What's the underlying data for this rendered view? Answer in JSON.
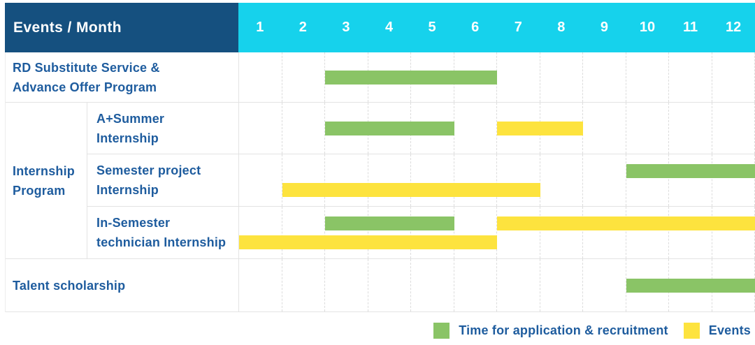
{
  "title": {
    "events_month_label": "Events / Month"
  },
  "header": {
    "months": [
      "1",
      "2",
      "3",
      "4",
      "5",
      "6",
      "7",
      "8",
      "9",
      "10",
      "11",
      "12"
    ]
  },
  "colors": {
    "header_bg": "#15507f",
    "month_header_bg": "#16d2ec",
    "application_bar": "#8ac466",
    "event_bar": "#fde33e",
    "label_text": "#1e5c9e"
  },
  "group": {
    "label_line1": "Internship",
    "label_line2": "Program"
  },
  "rows": [
    {
      "label_line1": "RD Substitute Service &",
      "label_line2": "Advance Offer Program",
      "bars": [
        {
          "kind": "application",
          "start": 3,
          "end": 6,
          "track": "center"
        }
      ]
    },
    {
      "label_line1": "A+Summer",
      "label_line2": "Internship",
      "bars": [
        {
          "kind": "application",
          "start": 3,
          "end": 5,
          "track": "center"
        },
        {
          "kind": "event",
          "start": 7,
          "end": 8,
          "track": "center"
        }
      ]
    },
    {
      "label_line1": "Semester project",
      "label_line2": "Internship",
      "bars": [
        {
          "kind": "application",
          "start": 10,
          "end": 12,
          "track": "top"
        },
        {
          "kind": "event",
          "start": 2,
          "end": 7,
          "track": "bottom"
        }
      ]
    },
    {
      "label_line1": "In-Semester",
      "label_line2": "technician Internship",
      "bars": [
        {
          "kind": "application",
          "start": 3,
          "end": 5,
          "track": "top"
        },
        {
          "kind": "event",
          "start": 7,
          "end": 12,
          "track": "top"
        },
        {
          "kind": "event",
          "start": 1,
          "end": 6,
          "track": "bottom"
        }
      ]
    },
    {
      "label_line1": "Talent scholarship",
      "label_line2": "",
      "bars": [
        {
          "kind": "application",
          "start": 10,
          "end": 12,
          "track": "center"
        }
      ]
    }
  ],
  "legend": {
    "application_label": "Time for application & recruitment",
    "events_label": "Events"
  },
  "chart_data": {
    "type": "gantt",
    "title": "Events / Month",
    "x_axis": {
      "label": "Month",
      "ticks": [
        1,
        2,
        3,
        4,
        5,
        6,
        7,
        8,
        9,
        10,
        11,
        12
      ],
      "range": [
        1,
        12
      ]
    },
    "series_legend": [
      {
        "name": "Time for application & recruitment",
        "color": "#8ac466"
      },
      {
        "name": "Events",
        "color": "#fde33e"
      }
    ],
    "tasks": [
      {
        "row": "RD Substitute Service & Advance Offer Program",
        "group": null,
        "series": "Time for application & recruitment",
        "start_month": 3,
        "end_month": 6
      },
      {
        "row": "A+Summer Internship",
        "group": "Internship Program",
        "series": "Time for application & recruitment",
        "start_month": 3,
        "end_month": 5
      },
      {
        "row": "A+Summer Internship",
        "group": "Internship Program",
        "series": "Events",
        "start_month": 7,
        "end_month": 8
      },
      {
        "row": "Semester project Internship",
        "group": "Internship Program",
        "series": "Time for application & recruitment",
        "start_month": 10,
        "end_month": 12
      },
      {
        "row": "Semester project Internship",
        "group": "Internship Program",
        "series": "Events",
        "start_month": 2,
        "end_month": 7
      },
      {
        "row": "In-Semester technician Internship",
        "group": "Internship Program",
        "series": "Time for application & recruitment",
        "start_month": 3,
        "end_month": 5
      },
      {
        "row": "In-Semester technician Internship",
        "group": "Internship Program",
        "series": "Events",
        "start_month": 7,
        "end_month": 12
      },
      {
        "row": "In-Semester technician Internship",
        "group": "Internship Program",
        "series": "Events",
        "start_month": 1,
        "end_month": 6
      },
      {
        "row": "Talent scholarship",
        "group": null,
        "series": "Time for application & recruitment",
        "start_month": 10,
        "end_month": 12
      }
    ],
    "grid": true,
    "legend_position": "bottom-right"
  }
}
